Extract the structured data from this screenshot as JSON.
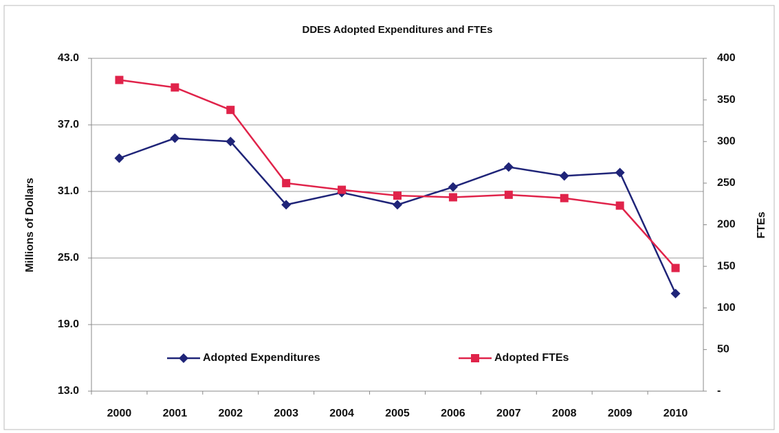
{
  "chart_data": {
    "type": "line",
    "title": "DDES Adopted Expenditures and FTEs",
    "ylabel": "Millions of Dollars",
    "y2label": "FTEs",
    "categories": [
      "2000",
      "2001",
      "2002",
      "2003",
      "2004",
      "2005",
      "2006",
      "2007",
      "2008",
      "2009",
      "2010"
    ],
    "series": [
      {
        "name": "Adopted Expenditures",
        "color": "#1f2478",
        "marker": "diamond",
        "values": [
          34.0,
          35.8,
          35.5,
          29.8,
          30.9,
          29.8,
          31.4,
          33.2,
          32.4,
          32.7,
          21.8
        ]
      },
      {
        "name": "Adopted FTEs",
        "color": "#e0234a",
        "marker": "square",
        "axis": "y2",
        "values": [
          374,
          365,
          338,
          250,
          242,
          235,
          233,
          236,
          232,
          223,
          148
        ]
      }
    ],
    "ylim": [
      13,
      43
    ],
    "yticks": [
      {
        "value": 13,
        "label": "13.0"
      },
      {
        "value": 19,
        "label": "19.0"
      },
      {
        "value": 25,
        "label": "25.0"
      },
      {
        "value": 31,
        "label": "31.0"
      },
      {
        "value": 37,
        "label": "37.0"
      },
      {
        "value": 43,
        "label": "43.0"
      }
    ],
    "y2lim": [
      0,
      400
    ],
    "y2ticks": [
      {
        "value": 0,
        "label": "-"
      },
      50,
      100,
      150,
      200,
      250,
      300,
      350,
      400
    ],
    "grid": true,
    "legend": "lower center"
  }
}
